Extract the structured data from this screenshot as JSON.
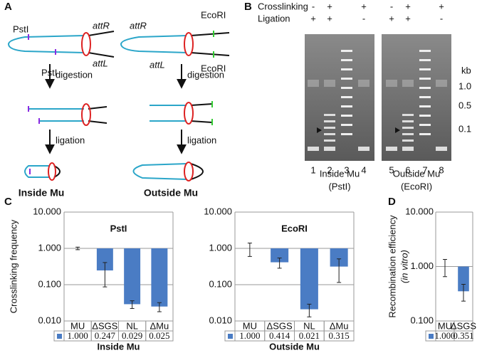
{
  "labels": [
    "A",
    "B",
    "C",
    "D"
  ],
  "panel_a": {
    "inside": {
      "site_top": "PstI",
      "site_bottom": "PstI",
      "att_r": "attR",
      "att_l": "attL",
      "step1": "digestion",
      "step2": "ligation",
      "caption": "Inside Mu"
    },
    "outside": {
      "att_r": "attR",
      "site_top": "EcoRI",
      "att_l": "attL",
      "site_bottom": "EcoRI",
      "step1": "digestion",
      "step2": "ligation",
      "caption": "Outside Mu"
    }
  },
  "panel_b": {
    "row_labels": [
      "Crosslinking",
      "Ligation"
    ],
    "lanes": [
      {
        "number": "1",
        "crosslinking": "-",
        "ligation": "+"
      },
      {
        "number": "2",
        "crosslinking": "+",
        "ligation": "+"
      },
      {
        "number": "3"
      },
      {
        "number": "4",
        "crosslinking": "+",
        "ligation": "-"
      },
      {
        "number": "5",
        "crosslinking": "-",
        "ligation": "+"
      },
      {
        "number": "6",
        "crosslinking": "+",
        "ligation": "+"
      },
      {
        "number": "7"
      },
      {
        "number": "8",
        "crosslinking": "+",
        "ligation": "-"
      }
    ],
    "unit": "kb",
    "markers": [
      "1.0",
      "0.5",
      "0.1"
    ],
    "captions": [
      [
        "Inside Mu",
        "(PstI)"
      ],
      [
        "Outside Mu",
        "(EcoRI)"
      ]
    ]
  },
  "chart_data": [
    {
      "type": "bar",
      "title": "PstI",
      "x_label": "Inside Mu",
      "y_label": [
        "Crosslinking frequency"
      ],
      "categories": [
        "MU",
        "ΔSGS",
        "NL",
        "ΔMu"
      ],
      "values": [
        1.0,
        0.247,
        0.029,
        0.025
      ],
      "value_labels": [
        "1.000",
        "0.247",
        "0.029",
        "0.025"
      ],
      "errors": [
        0.08,
        0.16,
        0.007,
        0.007
      ],
      "color": "#4a7cc4",
      "log_scale": true,
      "grid": true,
      "ylim": [
        0.01,
        10
      ],
      "yticks": [
        {
          "value": 10,
          "label": "10.000"
        },
        {
          "value": 1,
          "label": "1.000"
        },
        {
          "value": 0.1,
          "label": "0.100"
        },
        {
          "value": 0.01,
          "label": "0.010"
        }
      ]
    },
    {
      "type": "bar",
      "title": "EcoRI",
      "x_label": "Outside Mu",
      "categories": [
        "MU",
        "ΔSGS",
        "NL",
        "ΔMu"
      ],
      "values": [
        1.0,
        0.414,
        0.021,
        0.315
      ],
      "value_labels": [
        "1.000",
        "0.414",
        "0.021",
        "0.315"
      ],
      "errors": [
        0.4,
        0.13,
        0.008,
        0.2
      ],
      "color": "#4a7cc4",
      "log_scale": true,
      "grid": true,
      "ylim": [
        0.01,
        10
      ],
      "yticks": [
        {
          "value": 10,
          "label": "10.000"
        },
        {
          "value": 1,
          "label": "1.000"
        },
        {
          "value": 0.1,
          "label": "0.100"
        },
        {
          "value": 0.01,
          "label": "0.010"
        }
      ]
    },
    {
      "type": "bar",
      "y_label": [
        "Recombination efficiency",
        "(in vitro)"
      ],
      "categories": [
        "MU",
        "ΔSGS"
      ],
      "values": [
        1.0,
        0.351
      ],
      "value_labels": [
        "1.000",
        "0.351"
      ],
      "errors": [
        0.35,
        0.12
      ],
      "color": "#4a7cc4",
      "log_scale": true,
      "grid": true,
      "ylim": [
        0.1,
        10
      ],
      "yticks": [
        {
          "value": 10,
          "label": "10.000"
        },
        {
          "value": 1,
          "label": "1.000"
        },
        {
          "value": 0.1,
          "label": "0.100"
        }
      ]
    }
  ]
}
